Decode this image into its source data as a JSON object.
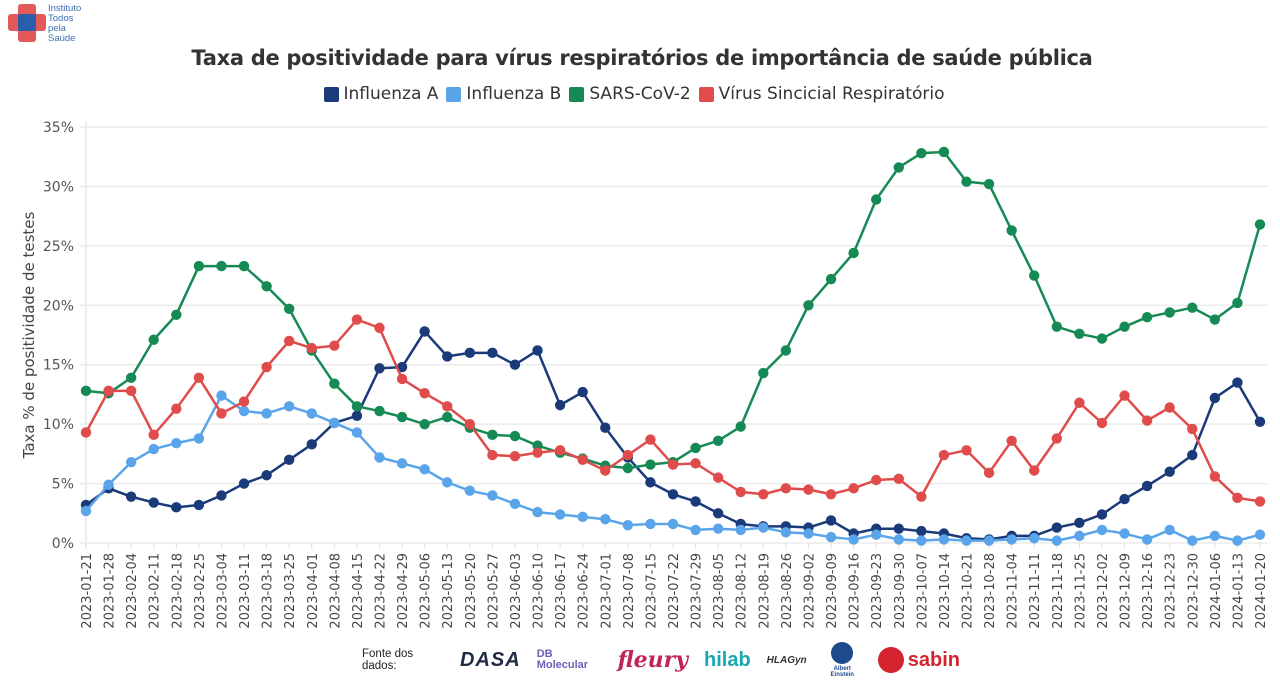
{
  "logo": {
    "text_lines": [
      "Instituto",
      "Todos",
      "pela",
      "Saúde"
    ]
  },
  "footer": {
    "source_label": "Fonte dos dados:",
    "brands": [
      "DASA",
      "DB Molecular",
      "fleury",
      "hilab",
      "HLAGyn",
      "Albert Einstein",
      "sabin"
    ]
  },
  "chart_data": {
    "type": "line",
    "title": "Taxa de positividade para vírus respiratórios de importância de saúde pública",
    "xlabel": "",
    "ylabel": "Taxa % de positividade de testes",
    "ylim": [
      0,
      35
    ],
    "yticks": [
      "0%",
      "5%",
      "10%",
      "15%",
      "20%",
      "25%",
      "30%",
      "35%"
    ],
    "ytick_values": [
      0,
      5,
      10,
      15,
      20,
      25,
      30,
      35
    ],
    "grid": true,
    "legend_position": "top-center",
    "x": [
      "2023-01-21",
      "2023-01-28",
      "2023-02-04",
      "2023-02-11",
      "2023-02-18",
      "2023-02-25",
      "2023-03-04",
      "2023-03-11",
      "2023-03-18",
      "2023-03-25",
      "2023-04-01",
      "2023-04-08",
      "2023-04-15",
      "2023-04-22",
      "2023-04-29",
      "2023-05-06",
      "2023-05-13",
      "2023-05-20",
      "2023-05-27",
      "2023-06-03",
      "2023-06-10",
      "2023-06-17",
      "2023-06-24",
      "2023-07-01",
      "2023-07-08",
      "2023-07-15",
      "2023-07-22",
      "2023-07-29",
      "2023-08-05",
      "2023-08-12",
      "2023-08-19",
      "2023-08-26",
      "2023-09-02",
      "2023-09-09",
      "2023-09-16",
      "2023-09-23",
      "2023-09-30",
      "2023-10-07",
      "2023-10-14",
      "2023-10-21",
      "2023-10-28",
      "2023-11-04",
      "2023-11-11",
      "2023-11-18",
      "2023-11-25",
      "2023-12-02",
      "2023-12-09",
      "2023-12-16",
      "2023-12-23",
      "2023-12-30",
      "2024-01-06",
      "2024-01-13",
      "2024-01-20"
    ],
    "series": [
      {
        "name": "Influenza A",
        "color": "#1b3a7a",
        "values": [
          3.2,
          4.6,
          3.9,
          3.4,
          3.0,
          3.2,
          4.0,
          5.0,
          5.7,
          7.0,
          8.3,
          10.1,
          10.7,
          14.7,
          14.8,
          17.8,
          15.7,
          16.0,
          16.0,
          15.0,
          16.2,
          11.6,
          12.7,
          9.7,
          7.2,
          5.1,
          4.1,
          3.5,
          2.5,
          1.6,
          1.4,
          1.4,
          1.3,
          1.9,
          0.8,
          1.2,
          1.2,
          1.0,
          0.8,
          0.4,
          0.3,
          0.6,
          0.6,
          1.3,
          1.7,
          2.4,
          3.7,
          4.8,
          6.0,
          7.4,
          12.2,
          13.5,
          10.2
        ]
      },
      {
        "name": "Influenza B",
        "color": "#5aa5ea",
        "values": [
          2.7,
          4.9,
          6.8,
          7.9,
          8.4,
          8.8,
          12.4,
          11.1,
          10.9,
          11.5,
          10.9,
          10.1,
          9.3,
          7.2,
          6.7,
          6.2,
          5.1,
          4.4,
          4.0,
          3.3,
          2.6,
          2.4,
          2.2,
          2.0,
          1.5,
          1.6,
          1.6,
          1.1,
          1.2,
          1.1,
          1.3,
          0.9,
          0.8,
          0.5,
          0.3,
          0.7,
          0.3,
          0.2,
          0.3,
          0.2,
          0.2,
          0.3,
          0.4,
          0.2,
          0.6,
          1.1,
          0.8,
          0.3,
          1.1,
          0.2,
          0.6,
          0.2,
          0.7
        ]
      },
      {
        "name": "SARS-CoV-2",
        "color": "#168a55",
        "values": [
          12.8,
          12.6,
          13.9,
          17.1,
          19.2,
          23.3,
          23.3,
          23.3,
          21.6,
          19.7,
          16.2,
          13.4,
          11.5,
          11.1,
          10.6,
          10.0,
          10.6,
          9.7,
          9.1,
          9.0,
          8.2,
          7.6,
          7.1,
          6.5,
          6.3,
          6.6,
          6.8,
          8.0,
          8.6,
          9.8,
          14.3,
          16.2,
          20.0,
          22.2,
          24.4,
          28.9,
          31.6,
          32.8,
          32.9,
          30.4,
          30.2,
          26.3,
          22.5,
          18.2,
          17.6,
          17.2,
          18.2,
          19.0,
          19.4,
          19.8,
          18.8,
          20.2,
          26.8
        ]
      },
      {
        "name": "Vírus Sincicial Respiratório",
        "color": "#e04b4b",
        "values": [
          9.3,
          12.8,
          12.8,
          9.1,
          11.3,
          13.9,
          10.9,
          11.9,
          14.8,
          17.0,
          16.4,
          16.6,
          18.8,
          18.1,
          13.8,
          12.6,
          11.5,
          10.0,
          7.4,
          7.3,
          7.6,
          7.8,
          7.0,
          6.1,
          7.4,
          8.7,
          6.6,
          6.7,
          5.5,
          4.3,
          4.1,
          4.6,
          4.5,
          4.1,
          4.6,
          5.3,
          5.4,
          3.9,
          7.4,
          7.8,
          5.9,
          8.6,
          6.1,
          8.8,
          11.8,
          10.1,
          12.4,
          10.3,
          11.4,
          9.6,
          5.6,
          3.8,
          3.5
        ]
      }
    ]
  }
}
